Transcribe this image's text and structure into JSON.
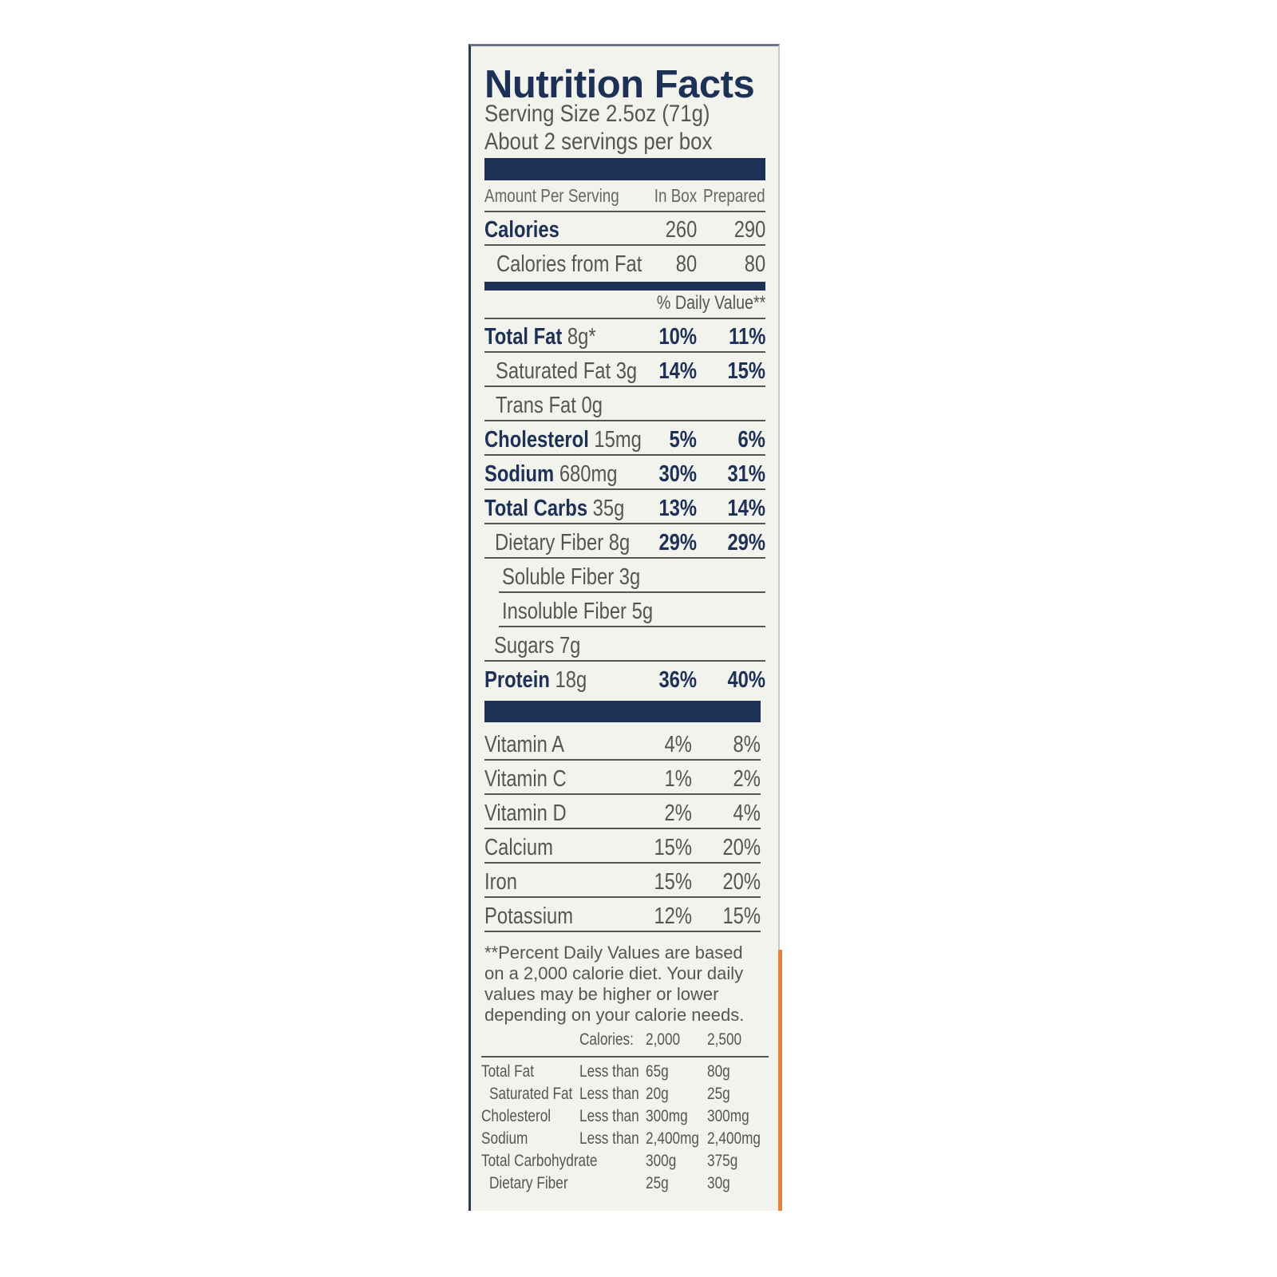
{
  "title": "Nutrition Facts",
  "serving_size": "Serving Size 2.5oz (71g)",
  "servings_per": "About 2 servings per box",
  "header": {
    "amount": "Amount Per Serving",
    "col1": "In Box",
    "col2": "Prepared"
  },
  "calories": [
    {
      "label": "Calories",
      "bold": true,
      "indent": 0,
      "v1": "260",
      "v2": "290"
    },
    {
      "label": "Calories from Fat",
      "bold": false,
      "indent": 15,
      "v1": "80",
      "v2": "80"
    }
  ],
  "dv_header": "% Daily Value**",
  "nutrients": [
    {
      "label": "Total Fat",
      "amount": "8g*",
      "indent": 0,
      "bold": true,
      "v1": "10%",
      "v2": "11%"
    },
    {
      "label": "Saturated Fat",
      "amount": "3g",
      "indent": 14,
      "bold": false,
      "v1": "14%",
      "v2": "15%"
    },
    {
      "label": "Trans Fat",
      "amount": "0g",
      "indent": 14,
      "bold": false,
      "v1": "",
      "v2": ""
    },
    {
      "label": "Cholesterol",
      "amount": "15mg",
      "indent": 0,
      "bold": true,
      "v1": "5%",
      "v2": "6%"
    },
    {
      "label": "Sodium",
      "amount": "680mg",
      "indent": 0,
      "bold": true,
      "v1": "30%",
      "v2": "31%"
    },
    {
      "label": "Total Carbs",
      "amount": "35g",
      "indent": 0,
      "bold": true,
      "v1": "13%",
      "v2": "14%"
    },
    {
      "label": "Dietary Fiber",
      "amount": "8g",
      "indent": 13,
      "bold": false,
      "v1": "29%",
      "v2": "29%"
    },
    {
      "label": "Soluble Fiber",
      "amount": "3g",
      "indent": 22,
      "bold": false,
      "v1": "",
      "v2": ""
    },
    {
      "label": "Insoluble Fiber",
      "amount": "5g",
      "indent": 22,
      "bold": false,
      "v1": "",
      "v2": ""
    },
    {
      "label": "Sugars",
      "amount": "7g",
      "indent": 12,
      "bold": false,
      "v1": "",
      "v2": ""
    },
    {
      "label": "Protein",
      "amount": "18g",
      "indent": 0,
      "bold": true,
      "v1": "36%",
      "v2": "40%"
    }
  ],
  "vitamins": [
    {
      "label": "Vitamin A",
      "v1": "4%",
      "v2": "8%"
    },
    {
      "label": "Vitamin C",
      "v1": "1%",
      "v2": "2%"
    },
    {
      "label": "Vitamin D",
      "v1": "2%",
      "v2": "4%"
    },
    {
      "label": "Calcium",
      "v1": "15%",
      "v2": "20%"
    },
    {
      "label": "Iron",
      "v1": "15%",
      "v2": "20%"
    },
    {
      "label": "Potassium",
      "v1": "12%",
      "v2": "15%"
    }
  ],
  "footnote": "**Percent Daily Values are based on a 2,000 calorie diet. Your daily values may be higher or lower depending on your calorie needs.",
  "dv_table": {
    "header": [
      "",
      "Calories:",
      "2,000",
      "2,500"
    ],
    "rows": [
      [
        "Total Fat",
        "Less than",
        "65g",
        "80g"
      ],
      [
        "Saturated Fat",
        "Less than",
        "20g",
        "25g"
      ],
      [
        "Cholesterol",
        "Less than",
        "300mg",
        "300mg"
      ],
      [
        "Sodium",
        "Less than",
        "2,400mg",
        "2,400mg"
      ],
      [
        "Total Carbohydrate",
        "",
        "300g",
        "375g"
      ],
      [
        "Dietary Fiber",
        "",
        "25g",
        "30g"
      ]
    ]
  },
  "colors": {
    "navy": "#1d3056",
    "text": "#555555",
    "background": "#f3f3ee",
    "accent_strip": "#e8823a"
  }
}
